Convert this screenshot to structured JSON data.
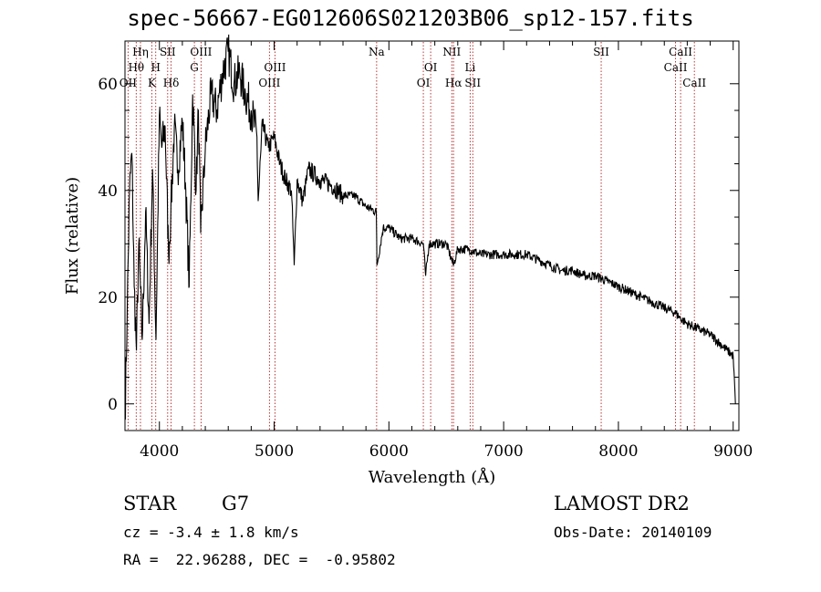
{
  "title": "spec-56667-EG012606S021203B06_sp12-157.fits",
  "chart_data": {
    "type": "line",
    "xlabel": "Wavelength (Å)",
    "ylabel": "Flux (relative)",
    "xlim": [
      3700,
      9050
    ],
    "ylim": [
      -5,
      68
    ],
    "xticks": [
      4000,
      5000,
      6000,
      7000,
      8000,
      9000
    ],
    "yticks": [
      0,
      20,
      40,
      60
    ],
    "grid": false,
    "series": [
      {
        "x": [
          3700,
          3720,
          3740,
          3760,
          3780,
          3800,
          3820,
          3850,
          3880,
          3910,
          3940,
          3970,
          4000,
          4020,
          4050,
          4080,
          4100,
          4130,
          4160,
          4200,
          4230,
          4260,
          4290,
          4320,
          4340,
          4360,
          4400,
          4450,
          4500,
          4550,
          4600,
          4650,
          4700,
          4750,
          4800,
          4850,
          4861,
          4900,
          4950,
          5000,
          5050,
          5100,
          5150,
          5175,
          5200,
          5250,
          5300,
          5400,
          5500,
          5600,
          5700,
          5800,
          5890,
          5896,
          5950,
          6000,
          6100,
          6200,
          6300,
          6320,
          6350,
          6400,
          6500,
          6563,
          6600,
          6700,
          6800,
          6900,
          7000,
          7100,
          7200,
          7300,
          7400,
          7500,
          7600,
          7700,
          7800,
          7900,
          8000,
          8100,
          8200,
          8300,
          8400,
          8500,
          8542,
          8600,
          8700,
          8800,
          8900,
          8950,
          9000,
          9020
        ],
        "y": [
          -3,
          18,
          40,
          47,
          22,
          10,
          30,
          12,
          36,
          15,
          44,
          12,
          54,
          48,
          52,
          28,
          36,
          52,
          44,
          53,
          40,
          22,
          58,
          40,
          55,
          32,
          48,
          58,
          55,
          62,
          66,
          60,
          62,
          58,
          55,
          50,
          38,
          52,
          48,
          50,
          45,
          42,
          40,
          26,
          42,
          38,
          44,
          42,
          41,
          39,
          39,
          37,
          36,
          26,
          33,
          33,
          31,
          31,
          30,
          24,
          30,
          30,
          30,
          26,
          29,
          29,
          28,
          28,
          28,
          28,
          28,
          27,
          26,
          25,
          25,
          24,
          24,
          23,
          22,
          21,
          20,
          19,
          18,
          17,
          16,
          15,
          14,
          13,
          11,
          10,
          9,
          0
        ]
      }
    ],
    "lines": [
      {
        "label": "Hη",
        "x": 3835,
        "row": 0
      },
      {
        "label": "Hθ",
        "x": 3798,
        "row": 1
      },
      {
        "label": "OII",
        "x": 3727,
        "row": 2
      },
      {
        "label": "SII",
        "x": 4072,
        "row": 0
      },
      {
        "label": "H",
        "x": 3968,
        "row": 1
      },
      {
        "label": "K",
        "x": 3934,
        "row": 2
      },
      {
        "label": "Hδ",
        "x": 4102,
        "row": 2
      },
      {
        "label": "OIII",
        "x": 4363,
        "row": 0
      },
      {
        "label": "G",
        "x": 4305,
        "row": 1
      },
      {
        "label": "OIII",
        "x": 5007,
        "row": 1
      },
      {
        "label": "OIII",
        "x": 4959,
        "row": 2
      },
      {
        "label": "Na",
        "x": 5893,
        "row": 0
      },
      {
        "label": "OI",
        "x": 6364,
        "row": 1
      },
      {
        "label": "OI",
        "x": 6300,
        "row": 2
      },
      {
        "label": "NII",
        "x": 6548,
        "row": 0
      },
      {
        "label": "Li",
        "x": 6708,
        "row": 1
      },
      {
        "label": "Hα",
        "x": 6563,
        "row": 2
      },
      {
        "label": "SII",
        "x": 6731,
        "row": 2
      },
      {
        "label": "SII",
        "x": 7850,
        "row": 0
      },
      {
        "label": "CaII",
        "x": 8542,
        "row": 0
      },
      {
        "label": "CaII",
        "x": 8498,
        "row": 1
      },
      {
        "label": "CaII",
        "x": 8662,
        "row": 2
      }
    ]
  },
  "info": {
    "object_class": "STAR",
    "subclass": "G7",
    "survey": "LAMOST DR2",
    "cz": "cz = -3.4 ± 1.8 km/s",
    "obs_date": "Obs-Date: 20140109",
    "coords": "RA =  22.96288, DEC =  -0.95802"
  },
  "colors": {
    "spectrum": "#000000",
    "line_markers": "#b22222",
    "axes": "#000000"
  }
}
